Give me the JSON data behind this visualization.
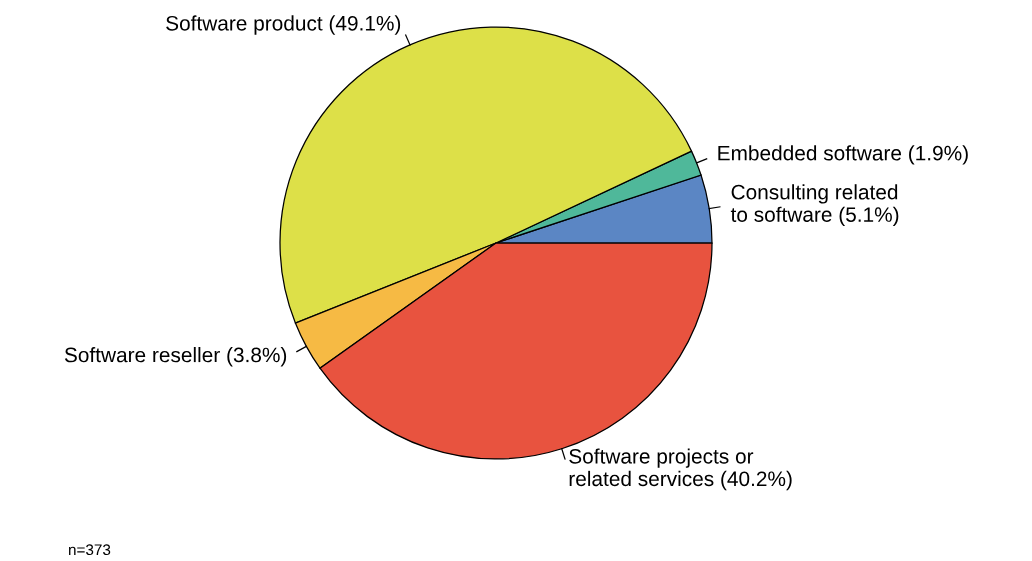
{
  "chart_data": {
    "type": "pie",
    "categories": [
      "Consulting related\nto software (5.1%)",
      "Embedded software (1.9%)",
      "Software product (49.1%)",
      "Software reseller (3.8%)",
      "Software projects or\nrelated services (40.2%)"
    ],
    "values": [
      5.1,
      1.9,
      49.1,
      3.8,
      40.2
    ],
    "colors": [
      "#5b86c4",
      "#4fb89a",
      "#dde048",
      "#f6ba44",
      "#e8533f"
    ],
    "annotations": [
      "n=373"
    ]
  }
}
